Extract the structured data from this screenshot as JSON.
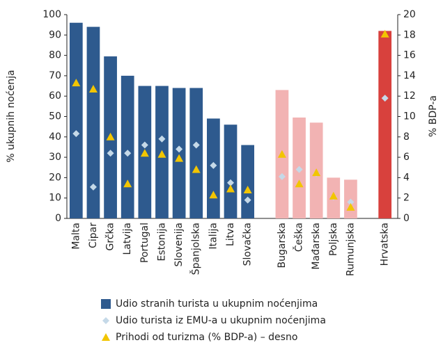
{
  "chart_data": {
    "type": "bar",
    "categories": [
      "Malta",
      "Cipar",
      "Grčka",
      "Latvija",
      "Portugal",
      "Estonija",
      "Slovenija",
      "Španjolska",
      "Italija",
      "Litva",
      "Slovačka",
      null,
      "Bugarska",
      "Češka",
      "Mađarska",
      "Poljska",
      "Rumunjska",
      null,
      "Hrvatska"
    ],
    "series": [
      {
        "name": "Udio stranih turista u ukupnim noćenjima",
        "type": "bar",
        "color": "#2e5a8e",
        "colors": [
          "#2e5a8e",
          "#2e5a8e",
          "#2e5a8e",
          "#2e5a8e",
          "#2e5a8e",
          "#2e5a8e",
          "#2e5a8e",
          "#2e5a8e",
          "#2e5a8e",
          "#2e5a8e",
          "#2e5a8e",
          null,
          "#f2b3b3",
          "#f2b3b3",
          "#f2b3b3",
          "#f2b3b3",
          "#f2b3b3",
          null,
          "#d8413d"
        ],
        "values": [
          96,
          94,
          79.5,
          70,
          65,
          65,
          64,
          64,
          49,
          46,
          36,
          null,
          63,
          49.5,
          47,
          20,
          19,
          null,
          92
        ]
      },
      {
        "name": "Udio turista iz EMU-a u ukupnim noćenjima",
        "type": "diamond",
        "color": "#c5d9e8",
        "values": [
          41.6,
          15.4,
          32,
          32,
          36,
          39,
          34,
          36,
          26,
          17.5,
          9,
          null,
          20.5,
          24,
          22,
          10.5,
          8,
          null,
          59
        ]
      },
      {
        "name": "Prihodi od turizma (% BDP-a) – desno",
        "type": "triangle",
        "color": "#f2c500",
        "axis": "y2",
        "values": [
          13.3,
          12.7,
          8,
          3.4,
          6.4,
          6.3,
          5.9,
          4.8,
          2.3,
          2.9,
          2.8,
          null,
          6.3,
          3.4,
          4.5,
          2.2,
          1.1,
          null,
          18.1
        ]
      }
    ],
    "y_label": "% ukupnih noćenja",
    "y2_label": "% BDP-a",
    "ylim": [
      0,
      100
    ],
    "yticks": [
      0,
      10,
      20,
      30,
      40,
      50,
      60,
      70,
      80,
      90,
      100
    ],
    "y2lim": [
      0,
      20
    ],
    "y2ticks": [
      0,
      2,
      4,
      6,
      8,
      10,
      12,
      14,
      16,
      18,
      20
    ]
  }
}
